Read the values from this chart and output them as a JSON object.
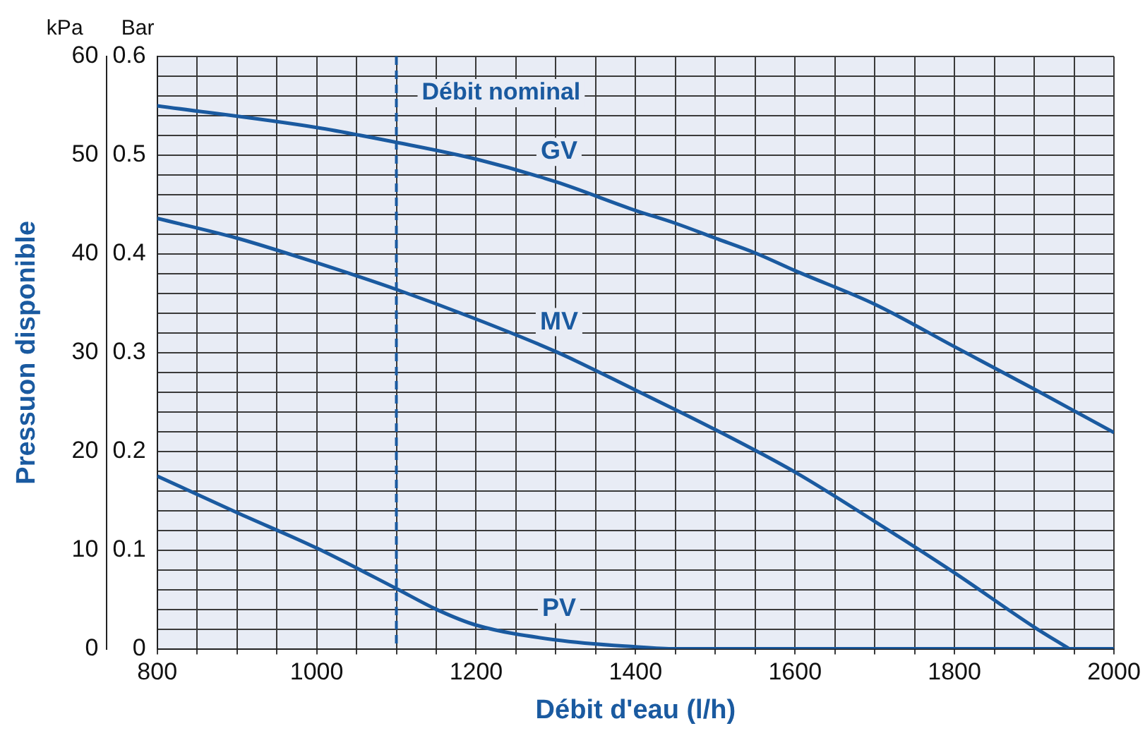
{
  "chart_data": {
    "type": "line",
    "xlabel": "Débit d'eau (l/h)",
    "ylabel": "Pressuon disponible",
    "y2label": "Bar",
    "annotations": [
      "kPa"
    ],
    "xlim": [
      800,
      2000
    ],
    "xticks": [
      800,
      {
        "value": 850,
        "label": null
      },
      {
        "value": 900,
        "label": null
      },
      {
        "value": 950,
        "label": null
      },
      1000,
      {
        "value": 1050,
        "label": null
      },
      {
        "value": 1100,
        "label": null
      },
      {
        "value": 1150,
        "label": null
      },
      1200,
      {
        "value": 1250,
        "label": null
      },
      {
        "value": 1300,
        "label": null
      },
      {
        "value": 1350,
        "label": null
      },
      1400,
      {
        "value": 1450,
        "label": null
      },
      {
        "value": 1500,
        "label": null
      },
      {
        "value": 1550,
        "label": null
      },
      1600,
      {
        "value": 1650,
        "label": null
      },
      {
        "value": 1700,
        "label": null
      },
      {
        "value": 1750,
        "label": null
      },
      1800,
      {
        "value": 1850,
        "label": null
      },
      {
        "value": 1900,
        "label": null
      },
      {
        "value": 1950,
        "label": null
      },
      2000
    ],
    "ylim": [
      0,
      60
    ],
    "yticks": [
      0,
      {
        "value": 2,
        "label": null
      },
      {
        "value": 4,
        "label": null
      },
      {
        "value": 6,
        "label": null
      },
      {
        "value": 8,
        "label": null
      },
      10,
      {
        "value": 12,
        "label": null
      },
      {
        "value": 14,
        "label": null
      },
      {
        "value": 16,
        "label": null
      },
      {
        "value": 18,
        "label": null
      },
      20,
      {
        "value": 22,
        "label": null
      },
      {
        "value": 24,
        "label": null
      },
      {
        "value": 26,
        "label": null
      },
      {
        "value": 28,
        "label": null
      },
      30,
      {
        "value": 32,
        "label": null
      },
      {
        "value": 34,
        "label": null
      },
      {
        "value": 36,
        "label": null
      },
      {
        "value": 38,
        "label": null
      },
      40,
      {
        "value": 42,
        "label": null
      },
      {
        "value": 44,
        "label": null
      },
      {
        "value": 46,
        "label": null
      },
      {
        "value": 48,
        "label": null
      },
      50,
      {
        "value": 52,
        "label": null
      },
      {
        "value": 54,
        "label": null
      },
      {
        "value": 56,
        "label": null
      },
      {
        "value": 58,
        "label": null
      },
      60
    ],
    "y2lim": [
      0,
      0.6
    ],
    "y2ticks": [
      0,
      0.1,
      0.2,
      0.3,
      0.4,
      0.5,
      0.6
    ],
    "grid": true,
    "legend": false,
    "marker": "none",
    "line_style": "solid",
    "ref_lines": [
      {
        "axis": "x",
        "value": 1100,
        "label": "Débit nominal",
        "color": "#1a5aa0",
        "line_style": "dashed"
      }
    ],
    "series": [
      {
        "name": "GV",
        "color": "#1a5aa0",
        "x": [
          800,
          1000,
          1100,
          1200,
          1300,
          1400,
          1450,
          1500,
          1550,
          1600,
          1700,
          1800,
          1900,
          2000
        ],
        "values": [
          55.0,
          52.8,
          51.3,
          49.6,
          47.3,
          44.4,
          43.1,
          41.6,
          40.1,
          38.3,
          34.9,
          30.6,
          26.3,
          21.9
        ]
      },
      {
        "name": "MV",
        "color": "#1a5aa0",
        "x": [
          800,
          900,
          1000,
          1100,
          1200,
          1300,
          1400,
          1500,
          1600,
          1700,
          1800,
          1900,
          1944
        ],
        "values": [
          43.6,
          41.6,
          39.1,
          36.4,
          33.4,
          30.1,
          26.2,
          22.2,
          17.9,
          12.9,
          7.7,
          2.2,
          0
        ]
      },
      {
        "name": "PV",
        "color": "#1a5aa0",
        "x": [
          800,
          900,
          1000,
          1100,
          1150,
          1200,
          1300,
          1400,
          1450,
          1500,
          2000
        ],
        "values": [
          17.5,
          13.8,
          10.2,
          6.1,
          4.0,
          2.4,
          0.9,
          0.2,
          0,
          0,
          0
        ]
      }
    ]
  }
}
